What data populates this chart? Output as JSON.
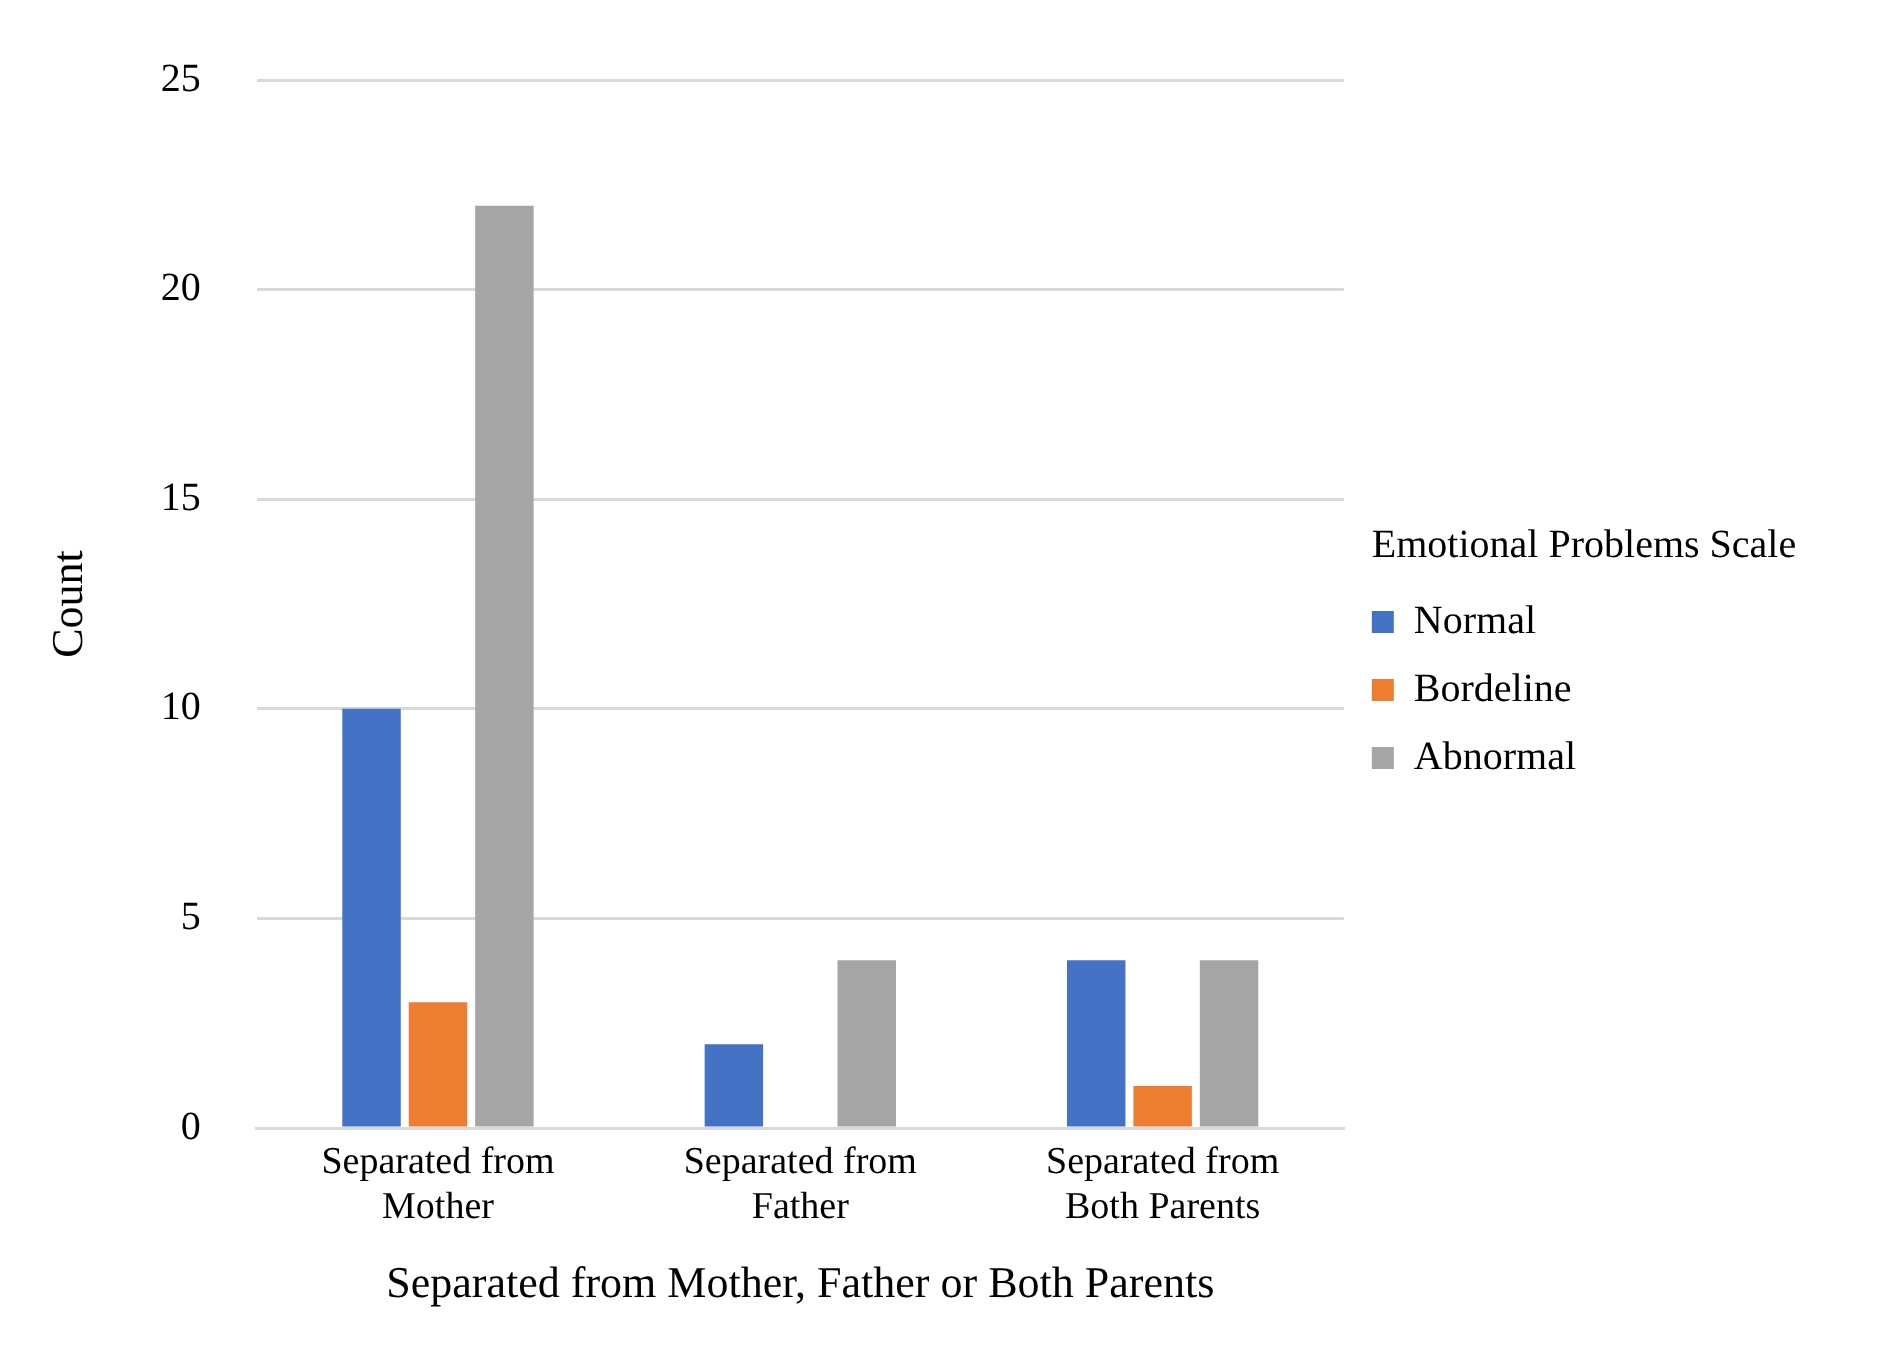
{
  "chart_data": {
    "type": "bar",
    "xlabel": "Separated from Mother, Father or Both Parents",
    "ylabel": "Count",
    "legend_title": "Emotional Problems Scale",
    "categories": [
      "Separated from Mother",
      "Separated from Father",
      "Separated from Both Parents"
    ],
    "series": [
      {
        "name": "Normal",
        "color": "#4472c4",
        "values": [
          10,
          2,
          4
        ]
      },
      {
        "name": "Bordeline",
        "color": "#ed7d31",
        "values": [
          3,
          0,
          1
        ]
      },
      {
        "name": "Abnormal",
        "color": "#a5a5a5",
        "values": [
          22,
          4,
          4
        ]
      }
    ],
    "ylim": [
      0,
      25
    ],
    "yticks": [
      0,
      5,
      10,
      15,
      20,
      25
    ],
    "grid": "y",
    "legend": "right"
  }
}
